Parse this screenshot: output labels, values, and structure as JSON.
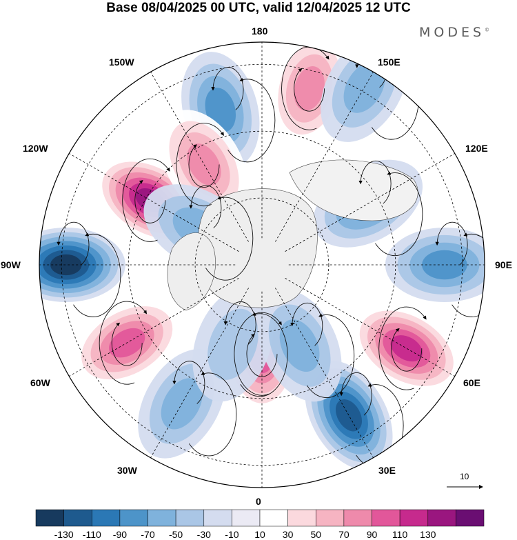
{
  "title": "Base 08/04/2025 00 UTC, valid 12/04/2025 12 UTC",
  "brand": "MODES",
  "brand_mark": "©",
  "longitude_labels": {
    "top": "180",
    "bottom": "0",
    "left": "90W",
    "right": "90E",
    "upper_left_1": "150W",
    "upper_left_2": "120W",
    "upper_right_1": "150E",
    "upper_right_2": "120E",
    "lower_left_1": "60W",
    "lower_left_2": "30W",
    "lower_right_1": "60E",
    "lower_right_2": "30E"
  },
  "vector_scale_label": "10",
  "colorbar": {
    "ticks": [
      "-130",
      "-110",
      "-90",
      "-70",
      "-50",
      "-30",
      "-10",
      "10",
      "30",
      "50",
      "70",
      "90",
      "110",
      "130"
    ],
    "colors": [
      "#173a5e",
      "#1e5a8e",
      "#2b78b5",
      "#4d94c9",
      "#7fb2dc",
      "#aac6e6",
      "#d4dcef",
      "#ebeaf4",
      "#ffffff",
      "#fbd9de",
      "#f6b4c2",
      "#ee8aab",
      "#e2579a",
      "#c62a8d",
      "#9a167f",
      "#6a0e72"
    ]
  },
  "anomaly_centers": [
    {
      "lon": -120,
      "colat": 0.58,
      "value": 120
    },
    {
      "lon": -90,
      "colat": 0.88,
      "value": -125
    },
    {
      "lon": -60,
      "colat": 0.7,
      "value": 85
    },
    {
      "lon": -30,
      "colat": 0.72,
      "value": -50
    },
    {
      "lon": 0,
      "colat": 0.4,
      "value": 85
    },
    {
      "lon": 30,
      "colat": 0.78,
      "value": -110
    },
    {
      "lon": 60,
      "colat": 0.75,
      "value": 115
    },
    {
      "lon": 90,
      "colat": 0.82,
      "value": -60
    },
    {
      "lon": 120,
      "colat": 0.55,
      "value": -70
    },
    {
      "lon": 165,
      "colat": 0.82,
      "value": 70
    },
    {
      "lon": -165,
      "colat": 0.72,
      "value": -70
    },
    {
      "lon": -150,
      "colat": 0.52,
      "value": 60
    },
    {
      "lon": -120,
      "colat": 0.33,
      "value": -45
    },
    {
      "lon": -20,
      "colat": 0.38,
      "value": -35
    },
    {
      "lon": 25,
      "colat": 0.4,
      "value": -45
    },
    {
      "lon": 150,
      "colat": 0.92,
      "value": -40
    }
  ]
}
